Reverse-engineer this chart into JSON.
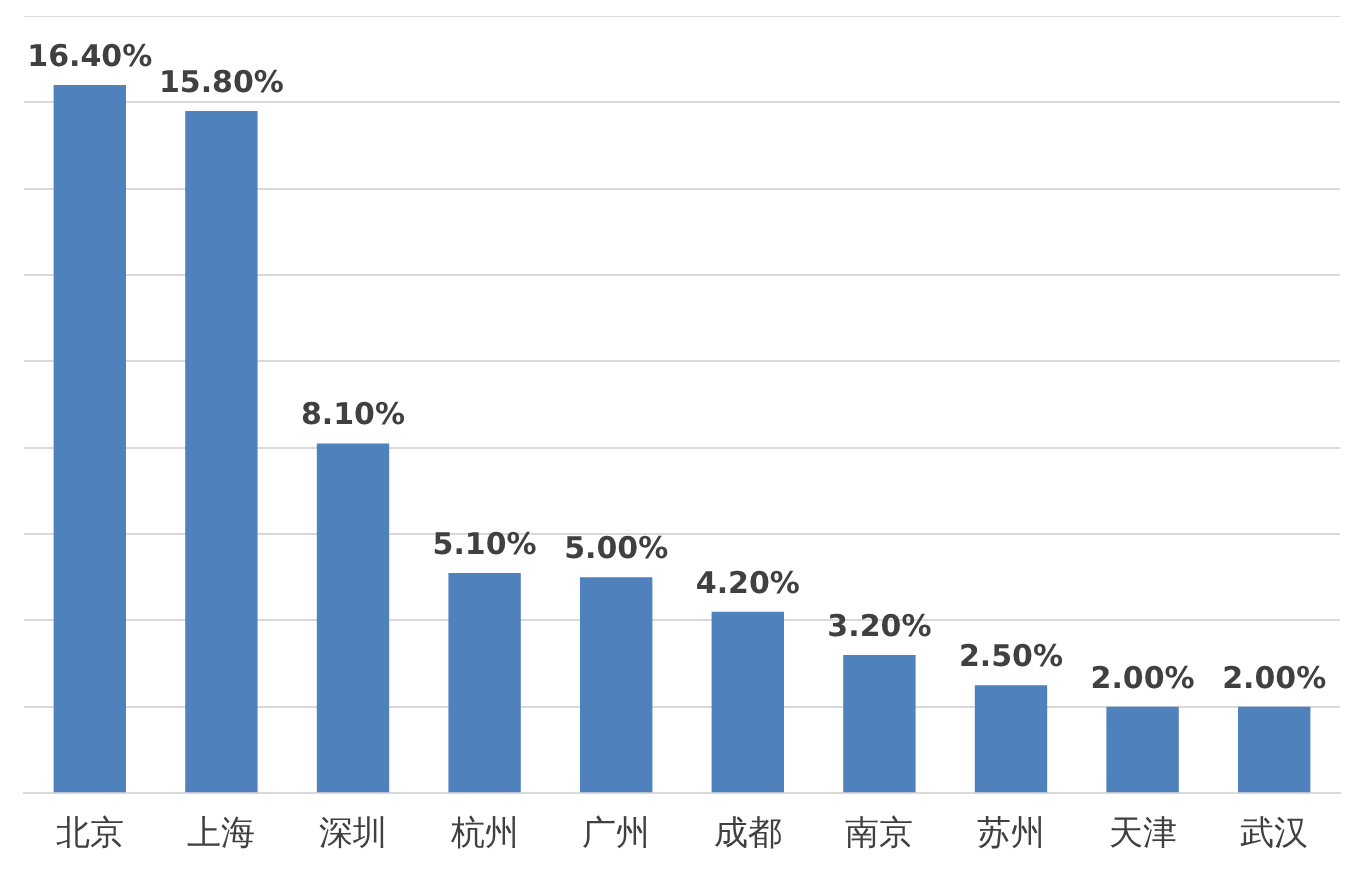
{
  "chart_data": {
    "type": "bar",
    "categories": [
      "北京",
      "上海",
      "深圳",
      "杭州",
      "广州",
      "成都",
      "南京",
      "苏州",
      "天津",
      "武汉"
    ],
    "values": [
      16.4,
      15.8,
      8.1,
      5.1,
      5.0,
      4.2,
      3.2,
      2.5,
      2.0,
      2.0
    ],
    "value_labels": [
      "16.40%",
      "15.80%",
      "8.10%",
      "5.10%",
      "5.00%",
      "4.20%",
      "3.20%",
      "2.50%",
      "2.00%",
      "2.00%"
    ],
    "color": "#4f81bd",
    "ylim": [
      0,
      18
    ],
    "yticks": [
      {
        "value": 0,
        "label": null
      },
      {
        "value": 2,
        "label": null
      },
      {
        "value": 4,
        "label": null
      },
      {
        "value": 6,
        "label": null
      },
      {
        "value": 8,
        "label": null
      },
      {
        "value": 10,
        "label": null
      },
      {
        "value": 12,
        "label": null
      },
      {
        "value": 14,
        "label": null
      },
      {
        "value": 16,
        "label": null
      },
      {
        "value": 18,
        "label": null
      }
    ],
    "grid": "y",
    "tick_labels": "x"
  }
}
